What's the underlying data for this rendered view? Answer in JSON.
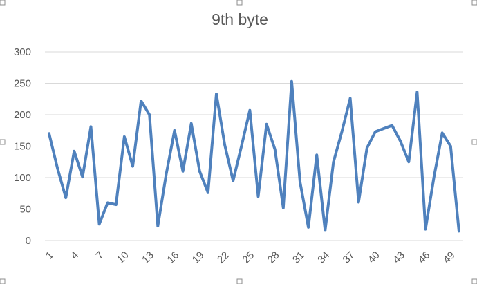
{
  "chart_data": {
    "type": "line",
    "title": "9th byte",
    "xlabel": "",
    "ylabel": "",
    "ylim": [
      0,
      300
    ],
    "yticks": [
      0,
      50,
      100,
      150,
      200,
      250,
      300
    ],
    "xtick_labels": [
      "1",
      "4",
      "7",
      "10",
      "13",
      "16",
      "19",
      "22",
      "25",
      "28",
      "31",
      "34",
      "37",
      "40",
      "43",
      "46",
      "49"
    ],
    "grid": true,
    "legend": "none",
    "series": [
      {
        "color": "#4f81bd",
        "x": [
          1,
          2,
          3,
          4,
          5,
          6,
          7,
          8,
          9,
          10,
          11,
          12,
          13,
          14,
          15,
          16,
          17,
          18,
          19,
          20,
          21,
          22,
          23,
          24,
          25,
          26,
          27,
          28,
          29,
          30,
          31,
          32,
          33,
          34,
          35,
          36,
          37,
          38,
          39,
          40,
          41,
          42,
          43,
          44,
          45,
          46,
          47,
          48,
          49,
          50
        ],
        "values": [
          170,
          115,
          68,
          142,
          101,
          181,
          26,
          60,
          57,
          165,
          118,
          222,
          200,
          23,
          105,
          175,
          110,
          186,
          110,
          76,
          233,
          152,
          95,
          150,
          207,
          70,
          185,
          145,
          52,
          253,
          93,
          21,
          136,
          16,
          125,
          173,
          226,
          61,
          147,
          173,
          178,
          183,
          158,
          125,
          236,
          18,
          100,
          171,
          150,
          15
        ]
      }
    ]
  }
}
